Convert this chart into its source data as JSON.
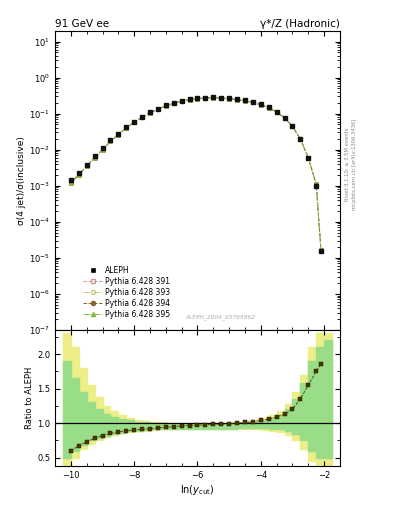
{
  "title_left": "91 GeV ee",
  "title_right": "γ*/Z (Hadronic)",
  "ylabel_main": "σ(4 jet)/σ(inclusive)",
  "ylabel_ratio": "Ratio to ALEPH",
  "xlabel": "ln(y_{cut})",
  "right_label_top": "Rivet 3.1.10; ≥ 3.5M events",
  "right_label_bot": "mcplots.cern.ch [arXiv:1306.3436]",
  "watermark": "ALEPH_2004_S5765862",
  "xlim": [
    -10.5,
    -1.5
  ],
  "x_data": [
    -10.0,
    -9.75,
    -9.5,
    -9.25,
    -9.0,
    -8.75,
    -8.5,
    -8.25,
    -8.0,
    -7.75,
    -7.5,
    -7.25,
    -7.0,
    -6.75,
    -6.5,
    -6.25,
    -6.0,
    -5.75,
    -5.5,
    -5.25,
    -5.0,
    -4.75,
    -4.5,
    -4.25,
    -4.0,
    -3.75,
    -3.5,
    -3.25,
    -3.0,
    -2.75,
    -2.5,
    -2.25,
    -2.1
  ],
  "aleph_y": [
    0.0014,
    0.0022,
    0.0038,
    0.0065,
    0.011,
    0.018,
    0.028,
    0.042,
    0.06,
    0.082,
    0.108,
    0.138,
    0.17,
    0.2,
    0.228,
    0.25,
    0.268,
    0.278,
    0.282,
    0.278,
    0.268,
    0.252,
    0.232,
    0.208,
    0.18,
    0.148,
    0.112,
    0.078,
    0.045,
    0.02,
    0.006,
    0.001,
    1.5e-05
  ],
  "pythia391_y": [
    0.0012,
    0.002,
    0.0035,
    0.006,
    0.01,
    0.017,
    0.026,
    0.04,
    0.058,
    0.079,
    0.104,
    0.133,
    0.164,
    0.193,
    0.221,
    0.243,
    0.261,
    0.271,
    0.275,
    0.271,
    0.261,
    0.246,
    0.227,
    0.204,
    0.177,
    0.146,
    0.111,
    0.077,
    0.044,
    0.02,
    0.006,
    0.0011,
    1.6e-05
  ],
  "pythia393_y": [
    0.0012,
    0.002,
    0.0035,
    0.006,
    0.01,
    0.017,
    0.026,
    0.04,
    0.058,
    0.079,
    0.104,
    0.133,
    0.164,
    0.193,
    0.221,
    0.243,
    0.261,
    0.271,
    0.275,
    0.271,
    0.261,
    0.246,
    0.227,
    0.204,
    0.177,
    0.146,
    0.111,
    0.077,
    0.044,
    0.02,
    0.006,
    0.0011,
    1.6e-05
  ],
  "pythia394_y": [
    0.0012,
    0.002,
    0.0035,
    0.006,
    0.01,
    0.017,
    0.026,
    0.04,
    0.058,
    0.079,
    0.104,
    0.133,
    0.164,
    0.193,
    0.221,
    0.243,
    0.261,
    0.271,
    0.275,
    0.271,
    0.261,
    0.246,
    0.227,
    0.204,
    0.177,
    0.146,
    0.111,
    0.077,
    0.044,
    0.02,
    0.006,
    0.0011,
    1.7e-05
  ],
  "pythia395_y": [
    0.0012,
    0.002,
    0.0035,
    0.006,
    0.01,
    0.017,
    0.026,
    0.04,
    0.058,
    0.079,
    0.104,
    0.133,
    0.164,
    0.193,
    0.221,
    0.243,
    0.261,
    0.271,
    0.275,
    0.271,
    0.261,
    0.246,
    0.227,
    0.204,
    0.177,
    0.146,
    0.111,
    0.077,
    0.044,
    0.02,
    0.006,
    0.0011,
    1.6e-05
  ],
  "ratio_x": [
    -10.0,
    -9.75,
    -9.5,
    -9.25,
    -9.0,
    -8.75,
    -8.5,
    -8.25,
    -8.0,
    -7.75,
    -7.5,
    -7.25,
    -7.0,
    -6.75,
    -6.5,
    -6.25,
    -6.0,
    -5.75,
    -5.5,
    -5.25,
    -5.0,
    -4.75,
    -4.5,
    -4.25,
    -4.0,
    -3.75,
    -3.5,
    -3.25,
    -3.0,
    -2.75,
    -2.5,
    -2.25,
    -2.1
  ],
  "ratio_data": [
    0.6,
    0.67,
    0.73,
    0.78,
    0.82,
    0.85,
    0.87,
    0.89,
    0.9,
    0.91,
    0.92,
    0.93,
    0.94,
    0.95,
    0.96,
    0.965,
    0.97,
    0.975,
    0.98,
    0.985,
    0.99,
    1.0,
    1.01,
    1.02,
    1.04,
    1.06,
    1.09,
    1.13,
    1.2,
    1.35,
    1.55,
    1.75,
    1.85
  ],
  "band_x_edges": [
    -10.25,
    -10.0,
    -9.75,
    -9.5,
    -9.25,
    -9.0,
    -8.75,
    -8.5,
    -8.25,
    -8.0,
    -7.75,
    -7.5,
    -7.25,
    -7.0,
    -6.75,
    -6.5,
    -6.25,
    -6.0,
    -5.75,
    -5.5,
    -5.25,
    -5.0,
    -4.75,
    -4.5,
    -4.25,
    -4.0,
    -3.75,
    -3.5,
    -3.25,
    -3.0,
    -2.75,
    -2.5,
    -2.25,
    -2.0,
    -1.75
  ],
  "band_yellow_low": [
    0.38,
    0.5,
    0.62,
    0.7,
    0.76,
    0.8,
    0.83,
    0.85,
    0.87,
    0.88,
    0.89,
    0.9,
    0.91,
    0.91,
    0.91,
    0.91,
    0.91,
    0.91,
    0.91,
    0.91,
    0.91,
    0.91,
    0.91,
    0.91,
    0.91,
    0.9,
    0.89,
    0.87,
    0.83,
    0.76,
    0.62,
    0.45,
    0.38,
    0.38
  ],
  "band_yellow_high": [
    2.3,
    2.1,
    1.8,
    1.55,
    1.38,
    1.25,
    1.18,
    1.12,
    1.08,
    1.05,
    1.03,
    1.02,
    1.01,
    1.0,
    1.0,
    1.0,
    1.0,
    1.0,
    1.0,
    1.0,
    1.0,
    1.01,
    1.02,
    1.03,
    1.05,
    1.08,
    1.12,
    1.18,
    1.28,
    1.45,
    1.7,
    2.1,
    2.3,
    2.3
  ],
  "band_green_low": [
    0.5,
    0.6,
    0.68,
    0.75,
    0.79,
    0.82,
    0.84,
    0.86,
    0.88,
    0.89,
    0.9,
    0.91,
    0.92,
    0.92,
    0.92,
    0.92,
    0.92,
    0.92,
    0.92,
    0.92,
    0.92,
    0.92,
    0.93,
    0.93,
    0.93,
    0.93,
    0.92,
    0.91,
    0.89,
    0.84,
    0.76,
    0.6,
    0.5,
    0.5
  ],
  "band_green_high": [
    1.9,
    1.65,
    1.45,
    1.3,
    1.2,
    1.13,
    1.09,
    1.06,
    1.04,
    1.02,
    1.01,
    1.0,
    1.0,
    0.99,
    0.99,
    0.99,
    0.99,
    0.99,
    0.99,
    0.99,
    0.99,
    1.0,
    1.0,
    1.01,
    1.02,
    1.04,
    1.07,
    1.12,
    1.2,
    1.35,
    1.58,
    1.9,
    2.1,
    2.2
  ],
  "aleph_color": "#111111",
  "pythia391_color": "#cc9999",
  "pythia393_color": "#cccc88",
  "pythia394_color": "#886633",
  "pythia395_color": "#88bb44",
  "band_yellow": "#eeee88",
  "band_green": "#99dd88",
  "ratio_marker_color": "#4a3a00"
}
